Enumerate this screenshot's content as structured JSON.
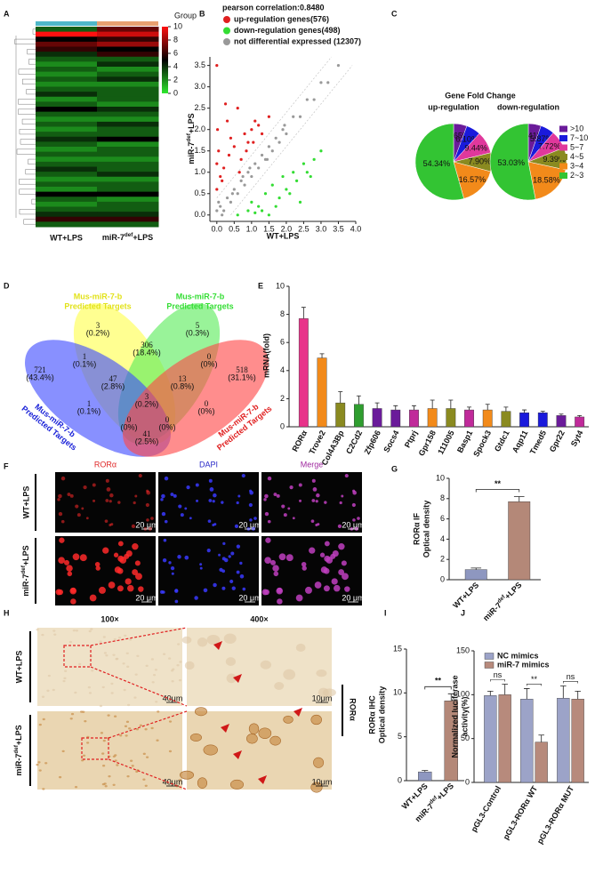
{
  "panel_labels": [
    "A",
    "B",
    "C",
    "D",
    "E",
    "F",
    "G",
    "H",
    "I",
    "J"
  ],
  "heatmap": {
    "columns": [
      "WT+LPS",
      {
        "base": "miR-7",
        "sup": "def",
        "after": "+LPS"
      }
    ],
    "legend_title": "Group",
    "legend_ticks": [
      0,
      2,
      4,
      6,
      8,
      10
    ],
    "values": [
      [
        3,
        7
      ],
      [
        10,
        9
      ],
      [
        5,
        6
      ],
      [
        7,
        8
      ],
      [
        6,
        5
      ],
      [
        4,
        6
      ],
      [
        3,
        3
      ],
      [
        2,
        4
      ],
      [
        3,
        2
      ],
      [
        2,
        3
      ],
      [
        3,
        4
      ],
      [
        2,
        2
      ],
      [
        3,
        3
      ],
      [
        4,
        3
      ],
      [
        2,
        3
      ],
      [
        3,
        2
      ],
      [
        5,
        4
      ],
      [
        3,
        3
      ],
      [
        2,
        2
      ],
      [
        3,
        4
      ],
      [
        2,
        3
      ],
      [
        3,
        3
      ],
      [
        4,
        5
      ],
      [
        3,
        2
      ],
      [
        2,
        3
      ],
      [
        3,
        3
      ],
      [
        2,
        2
      ],
      [
        3,
        3
      ],
      [
        4,
        3
      ],
      [
        3,
        4
      ],
      [
        2,
        2
      ],
      [
        3,
        3
      ],
      [
        2,
        3
      ],
      [
        5,
        5
      ],
      [
        3,
        2
      ],
      [
        2,
        3
      ],
      [
        3,
        3
      ],
      [
        4,
        4
      ],
      [
        6,
        6
      ],
      [
        3,
        3
      ]
    ]
  },
  "venn": {
    "sets": [
      {
        "name": [
          "Mus-miR-7-b",
          "Predicted Targets"
        ],
        "color": "#ffff4d",
        "text_color": "#e2e21a"
      },
      {
        "name": [
          "Mus-miR-7-b",
          "Predicted Targets"
        ],
        "color": "#5aeb5a",
        "text_color": "#33dd33"
      },
      {
        "name": [
          "Mus-miR-7-b",
          "Predicted Targets"
        ],
        "color": "#3f4cff",
        "text_color": "#1a22d8"
      },
      {
        "name": [
          "Mus-miR-7-b",
          "Predicted Targets"
        ],
        "color": "#ff4747",
        "text_color": "#e02020"
      }
    ],
    "regions": [
      {
        "count": 3,
        "percent": "(0.2%)"
      },
      {
        "count": 5,
        "percent": "(0.3%)"
      },
      {
        "count": 721,
        "percent": "(43.4%)"
      },
      {
        "count": 306,
        "percent": "(18.4%)"
      },
      {
        "count": 1,
        "percent": "(0.1%)"
      },
      {
        "count": 0,
        "percent": "(0%)"
      },
      {
        "count": 518,
        "percent": "(31.1%)"
      },
      {
        "count": 47,
        "percent": "(2.8%)"
      },
      {
        "count": 13,
        "percent": "(0.8%)"
      },
      {
        "count": 1,
        "percent": "(0.1%)"
      },
      {
        "count": 3,
        "percent": "(0.2%)"
      },
      {
        "count": 0,
        "percent": "(0%)"
      },
      {
        "count": 0,
        "percent": "(0%)"
      },
      {
        "count": 0,
        "percent": "(0%)"
      },
      {
        "count": 41,
        "percent": "(2.5%)"
      }
    ]
  },
  "if_images": {
    "columns": [
      "RORα",
      "DAPI",
      "Merge"
    ],
    "column_colors": [
      "#e02828",
      "#2a2ac8",
      "#a02aa0"
    ],
    "rows": [
      "WT+LPS",
      {
        "base": "miR-7",
        "sup": "def",
        "after": "+LPS"
      }
    ],
    "scale": "20 μm"
  },
  "ihc_images": {
    "columns": [
      "100×",
      "400×"
    ],
    "rows": [
      "WT+LPS",
      {
        "base": "miR-7",
        "sup": "def",
        "after": "+LPS"
      }
    ],
    "side": "RORα",
    "scale": [
      "40μm",
      "10μm"
    ]
  },
  "chart_data": [
    {
      "type": "scatter",
      "title": "pearson correlation:0.8480",
      "xlabel": "WT+LPS",
      "ylabel": {
        "base": "miR-7",
        "sup": "def",
        "after": "+LPS"
      },
      "xlim": [
        -0.2,
        4.0
      ],
      "ylim": [
        -0.15,
        3.7
      ],
      "xticks": [
        {
          "value": 0,
          "label": "0.0"
        },
        {
          "value": 0.5,
          "label": "0.5"
        },
        {
          "value": 1,
          "label": "1.0"
        },
        {
          "value": 1.5,
          "label": "1.5"
        },
        {
          "value": 2,
          "label": "2.0"
        },
        {
          "value": 2.5,
          "label": "2.5"
        },
        {
          "value": 3,
          "label": "3.0"
        },
        {
          "value": 3.5,
          "label": "3.5"
        },
        {
          "value": 4,
          "label": "4.0"
        }
      ],
      "yticks": [
        {
          "value": 0,
          "label": "0.0"
        },
        {
          "value": 0.5,
          "label": "0.5"
        },
        {
          "value": 1,
          "label": "1.0"
        },
        {
          "value": 1.5,
          "label": "1.5"
        },
        {
          "value": 2,
          "label": "2.0"
        },
        {
          "value": 2.5,
          "label": "2.5"
        },
        {
          "value": 3,
          "label": "3.0"
        },
        {
          "value": 3.5,
          "label": "3.5"
        }
      ],
      "series": [
        {
          "name": "up-regulation genes(576)",
          "color": "#e02020",
          "x": [
            0,
            0,
            0.02,
            0.05,
            0.1,
            0.2,
            0.3,
            0.35,
            0.5,
            0.6,
            0.7,
            0.8,
            0.9,
            1.0,
            1.1,
            1.2,
            1.3,
            1.5,
            0.4,
            0.25,
            0.15,
            0.65,
            0.85,
            1.05,
            0.0
          ],
          "values": [
            0.6,
            1.2,
            2.0,
            1.5,
            0.9,
            1.1,
            2.2,
            1.4,
            1.6,
            2.5,
            1.3,
            1.9,
            1.7,
            2.0,
            2.2,
            2.1,
            1.9,
            2.3,
            1.8,
            2.6,
            0.8,
            1.0,
            1.5,
            1.7,
            3.5
          ]
        },
        {
          "name": "down-regulation genes(498)",
          "color": "#33dd33",
          "x": [
            0.6,
            0.9,
            1.0,
            1.2,
            1.4,
            1.5,
            1.6,
            1.8,
            1.9,
            2.0,
            2.2,
            2.3,
            2.5,
            2.6,
            2.8,
            3.0,
            1.3,
            1.7,
            2.1,
            2.4,
            1.1,
            2.7
          ],
          "values": [
            0.0,
            0.1,
            0.3,
            0.2,
            0.5,
            0.0,
            0.7,
            0.4,
            0.9,
            0.6,
            1.0,
            0.8,
            1.2,
            1.0,
            1.3,
            1.5,
            0.1,
            0.2,
            0.5,
            0.3,
            0.05,
            0.9
          ]
        },
        {
          "name": "not differential expressed (12307)",
          "color": "#999999",
          "x": [
            0,
            0.1,
            0.2,
            0.3,
            0.4,
            0.5,
            0.6,
            0.7,
            0.8,
            0.9,
            1.0,
            1.1,
            1.2,
            1.3,
            1.4,
            1.5,
            1.6,
            1.7,
            1.8,
            1.9,
            2.0,
            2.2,
            2.4,
            2.6,
            2.8,
            3.0,
            3.2,
            3.5,
            0.05,
            0.45,
            0.95,
            1.45,
            1.95,
            0.15,
            0.75
          ],
          "values": [
            0.1,
            0.2,
            0.1,
            0.4,
            0.3,
            0.6,
            0.5,
            0.8,
            0.7,
            1.0,
            0.9,
            1.2,
            1.1,
            1.4,
            1.3,
            1.6,
            1.5,
            1.8,
            1.7,
            2.0,
            1.9,
            2.3,
            2.3,
            2.7,
            2.7,
            3.1,
            3.1,
            3.5,
            0.3,
            0.5,
            1.1,
            1.3,
            2.1,
            0.0,
            0.9
          ]
        }
      ]
    },
    {
      "type": "pie",
      "title": "Gene Fold Change",
      "categories": [
        ">10",
        "7~10",
        "5~7",
        "4~5",
        "3~4",
        "2~3"
      ],
      "colors": [
        "#6a1b9a",
        "#1a1adc",
        "#e0389c",
        "#8a8a20",
        "#f28a1a",
        "#33c433"
      ],
      "pies": [
        {
          "name": "up-regulation",
          "values": [
            5.65,
            6.1,
            9.44,
            7.9,
            16.57,
            54.34
          ],
          "value_labels": [
            "5.65%",
            "6.10%",
            "9.44%",
            "7.90%",
            "16.57%",
            "54.34%"
          ]
        },
        {
          "name": "down-regulation",
          "values": [
            5.41,
            5.87,
            7.72,
            9.39,
            18.58,
            53.03
          ],
          "value_labels": [
            "5.41%",
            "5.87%",
            "7.72%",
            "9.39%",
            "18.58%",
            "53.03%"
          ]
        }
      ]
    },
    {
      "type": "bar",
      "ylabel": "mRNA(fold)",
      "categories": [
        "RORα",
        "Trove2",
        "Col4A3Bp",
        "C2Cd2",
        "Zfp606",
        "Socs4",
        "Ptprj",
        "Gpr158",
        "111005",
        "Basp1",
        "Spock3",
        "Gtdc1",
        "Aqp11",
        "Tmed5",
        "Gpr22",
        "Syt4"
      ],
      "values": [
        7.7,
        4.9,
        1.7,
        1.6,
        1.3,
        1.2,
        1.2,
        1.3,
        1.3,
        1.2,
        1.2,
        1.1,
        1.0,
        1.0,
        0.8,
        0.7
      ],
      "errors": [
        0.8,
        0.3,
        0.8,
        0.6,
        0.4,
        0.3,
        0.3,
        0.6,
        0.6,
        0.2,
        0.4,
        0.3,
        0.2,
        0.1,
        0.1,
        0.1
      ],
      "colors": [
        "#e8338a",
        "#f28a1a",
        "#8a8a20",
        "#2f9e2f",
        "#6a1b9a",
        "#6a1b9a",
        "#c02a9a",
        "#f28a1a",
        "#8a8a20",
        "#c02a9a",
        "#f28a1a",
        "#8a8a20",
        "#1a1adc",
        "#1a1adc",
        "#6a1b9a",
        "#c02a9a"
      ],
      "ylim": [
        0,
        10
      ],
      "yticks": [
        0,
        2,
        4,
        6,
        8,
        10
      ]
    },
    {
      "type": "bar",
      "ylabel": [
        "RORα IF",
        "Optical density"
      ],
      "categories": [
        "WT+LPS",
        {
          "base": "miR-7",
          "sup": "def",
          "after": "+LPS"
        }
      ],
      "values": [
        1.0,
        7.7
      ],
      "errors": [
        0.15,
        0.5
      ],
      "colors": [
        "#8e97c0",
        "#b48878"
      ],
      "ylim": [
        0,
        10
      ],
      "yticks": [
        0,
        2,
        4,
        6,
        8,
        10
      ],
      "significance": "**"
    },
    {
      "type": "bar",
      "ylabel": [
        "RORα IHC",
        "Optical density"
      ],
      "categories": [
        "WT+LPS",
        {
          "base": "miR-7",
          "sup": "def",
          "after": "+LPS"
        }
      ],
      "values": [
        1.0,
        9.1
      ],
      "errors": [
        0.15,
        0.8
      ],
      "colors": [
        "#8e97c0",
        "#b48878"
      ],
      "ylim": [
        0,
        15
      ],
      "yticks": [
        0,
        5,
        10,
        15
      ],
      "significance": "**"
    },
    {
      "type": "grouped_bar",
      "ylabel": [
        "Normalized luciferase",
        "activity(%)"
      ],
      "categories": [
        "pGL3-Control",
        "pGL3-RORα WT",
        "pGL3-RORα MUT"
      ],
      "series": [
        {
          "name": "NC mimics",
          "color": "#9ca3c8",
          "values": [
            99,
            95,
            96
          ],
          "errors": [
            5,
            12,
            14
          ]
        },
        {
          "name": "miR-7 mimics",
          "color": "#b78a7c",
          "values": [
            100,
            46,
            95
          ],
          "errors": [
            12,
            8,
            9
          ]
        }
      ],
      "ylim": [
        0,
        150
      ],
      "yticks": [
        0,
        50,
        100,
        150
      ],
      "significance": [
        "ns",
        "**",
        "ns"
      ]
    }
  ]
}
